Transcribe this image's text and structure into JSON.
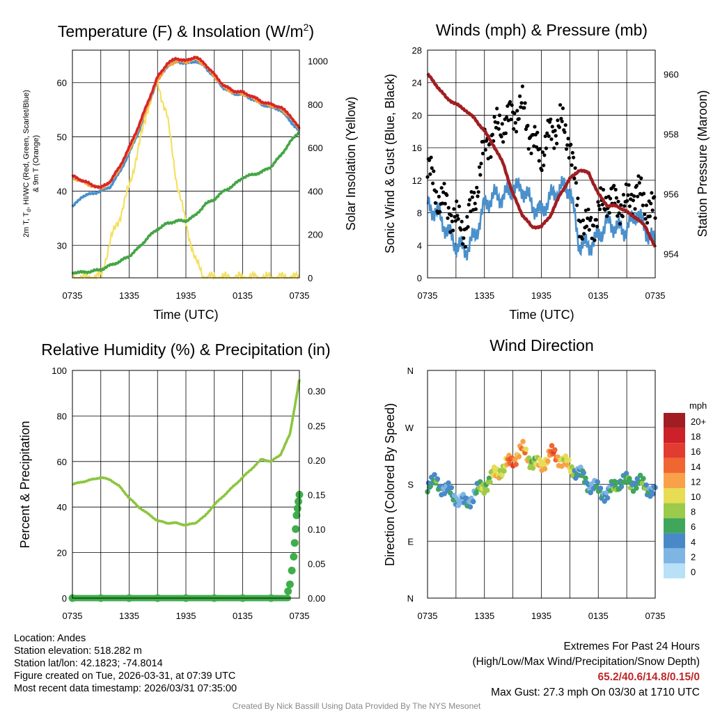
{
  "chart_data": [
    {
      "type": "line",
      "title": "Temperature (F) & Insolation (W/m²)",
      "title_main": "Temperature (F) & Insolation (W/m",
      "title_sup": "2",
      "title_end": ")",
      "xlabel": "Time (UTC)",
      "ylabel_line1": "2m T, T",
      "ylabel_sub": "d",
      "ylabel_line1_end": ", HI/WC (Red, Green, Scarlet/Blue)",
      "ylabel_line2": "& 9m T (Orange)",
      "y2label": "Solar Insolation (Yellow)",
      "x_ticks": [
        "0735",
        "1335",
        "1935",
        "0135",
        "0735"
      ],
      "ylim": [
        24,
        66
      ],
      "y_ticks": [
        "30",
        "40",
        "50",
        "60"
      ],
      "y2lim": [
        0,
        1050
      ],
      "y2_ticks": [
        "0",
        "200",
        "400",
        "600",
        "800",
        "1000"
      ],
      "x_hours": [
        0,
        1,
        2,
        3,
        4,
        5,
        6,
        7,
        8,
        9,
        10,
        11,
        12,
        13,
        14,
        15,
        16,
        17,
        18,
        19,
        20,
        21,
        22,
        23,
        24
      ],
      "series": [
        {
          "name": "2m T",
          "color": "#d62728",
          "values": [
            42.8,
            42.0,
            41.2,
            40.6,
            41.8,
            44.5,
            48.0,
            52.0,
            56.5,
            61.0,
            63.5,
            64.5,
            64.0,
            64.8,
            63.5,
            61.5,
            59.5,
            58.5,
            58.2,
            57.5,
            56.5,
            56.0,
            55.5,
            54.0,
            51.5
          ]
        },
        {
          "name": "Td",
          "color": "#44a645",
          "values": [
            25.0,
            25.0,
            25.2,
            25.5,
            26.3,
            27.0,
            28.0,
            29.5,
            31.5,
            33.0,
            34.0,
            34.5,
            34.5,
            35.5,
            37.5,
            38.5,
            40.0,
            41.0,
            42.5,
            43.0,
            43.5,
            44.5,
            46.5,
            49.0,
            51.0
          ]
        },
        {
          "name": "HI/WC",
          "color": "#4a90cc",
          "values": [
            37.0,
            39.0,
            39.5,
            40.0,
            40.8,
            43.5,
            47.0,
            51.0,
            56.0,
            60.5,
            63.0,
            64.0,
            63.5,
            64.0,
            63.0,
            61.0,
            59.0,
            58.0,
            57.8,
            57.0,
            56.0,
            55.5,
            55.0,
            53.0,
            51.0
          ]
        },
        {
          "name": "9m T",
          "color": "#f5a040",
          "values": [
            42.5,
            41.8,
            41.0,
            40.5,
            41.6,
            44.2,
            47.5,
            51.5,
            56.0,
            60.5,
            63.0,
            64.0,
            63.8,
            64.5,
            63.2,
            61.2,
            59.2,
            58.2,
            58.0,
            57.2,
            56.2,
            55.8,
            55.2,
            53.8,
            51.5
          ]
        }
      ],
      "insolation": {
        "name": "Solar Insolation",
        "color": "#f5e060",
        "values": [
          0,
          0,
          0,
          5,
          170,
          280,
          420,
          600,
          790,
          900,
          750,
          450,
          250,
          80,
          0,
          0,
          0,
          0,
          0,
          0,
          0,
          0,
          0,
          0,
          0
        ]
      }
    },
    {
      "type": "line",
      "title": "Winds (mph) & Pressure (mb)",
      "xlabel": "Time (UTC)",
      "ylabel": "Sonic Wind & Gust (Blue, Black)",
      "y2label": "Station Pressure (Maroon)",
      "x_ticks": [
        "0735",
        "1335",
        "1935",
        "0135",
        "0735"
      ],
      "ylim": [
        0,
        28
      ],
      "y_ticks": [
        "0",
        "4",
        "8",
        "12",
        "16",
        "20",
        "24",
        "28"
      ],
      "y2lim": [
        953.2,
        960.8
      ],
      "y2_ticks": [
        "954",
        "956",
        "958",
        "960"
      ],
      "x_hours": [
        0,
        1,
        2,
        3,
        4,
        5,
        6,
        7,
        8,
        9,
        10,
        11,
        12,
        13,
        14,
        15,
        16,
        17,
        18,
        19,
        20,
        21,
        22,
        23,
        24
      ],
      "wind": {
        "name": "Sonic Wind",
        "color": "#4a90cc",
        "values": [
          9,
          8,
          6,
          4,
          3.5,
          5,
          9,
          10,
          10,
          11,
          11,
          9,
          8,
          10,
          11,
          11,
          4,
          4,
          5,
          7,
          6,
          6,
          8,
          6,
          4
        ]
      },
      "gust": {
        "name": "Gust",
        "color": "#000000",
        "values": [
          14,
          10,
          9,
          7,
          6,
          10,
          16,
          18,
          19,
          20,
          21,
          17,
          15,
          18,
          19,
          17,
          7,
          6,
          8,
          10,
          9,
          9,
          11,
          9,
          8
        ]
      },
      "pressure": {
        "name": "Station Pressure",
        "color": "#a01e22",
        "values": [
          960.0,
          959.6,
          959.2,
          959.0,
          958.8,
          958.5,
          958.1,
          957.6,
          957.0,
          956.0,
          955.3,
          954.9,
          954.9,
          955.3,
          956.0,
          956.5,
          956.8,
          956.7,
          956.0,
          955.6,
          955.6,
          955.4,
          955.2,
          954.9,
          954.2
        ]
      }
    },
    {
      "type": "line",
      "title": "Relative Humidity (%) & Precipitation (in)",
      "xlabel": "",
      "ylabel": "Percent & Precipitation",
      "x_ticks": [
        "0735",
        "1335",
        "1935",
        "0135",
        "0735"
      ],
      "ylim": [
        0,
        100
      ],
      "y_ticks": [
        "0",
        "20",
        "40",
        "60",
        "80",
        "100"
      ],
      "y2lim": [
        0,
        0.33
      ],
      "y2_ticks": [
        "0.00",
        "0.05",
        "0.10",
        "0.15",
        "0.20",
        "0.25",
        "0.30"
      ],
      "x_hours": [
        0,
        1,
        2,
        3,
        4,
        5,
        6,
        7,
        8,
        9,
        10,
        11,
        12,
        13,
        14,
        15,
        16,
        17,
        18,
        19,
        20,
        21,
        22,
        23,
        24
      ],
      "rh": {
        "name": "Relative Humidity",
        "color": "#8cc63f",
        "values": [
          50,
          51,
          52,
          53,
          52,
          49,
          44,
          40,
          37,
          34,
          33,
          33,
          32,
          33,
          36,
          41,
          45,
          49,
          53,
          57,
          61,
          60,
          63,
          72,
          96
        ]
      },
      "precip": {
        "name": "Precipitation",
        "color": "#3fae49",
        "hours": [
          0,
          3,
          6,
          9,
          12,
          15,
          18,
          21,
          22.8,
          23.0,
          23.2,
          23.4,
          23.5,
          23.6,
          23.7,
          23.8,
          23.9,
          24.0
        ],
        "values": [
          0,
          0,
          0,
          0,
          0,
          0,
          0,
          0,
          0.01,
          0.02,
          0.04,
          0.06,
          0.08,
          0.1,
          0.12,
          0.13,
          0.14,
          0.15
        ]
      }
    },
    {
      "type": "scatter",
      "title": "Wind Direction",
      "ylabel": "Direction (Colored By Speed)",
      "x_ticks": [
        "0735",
        "1335",
        "1935",
        "0135",
        "0735"
      ],
      "y_ticks": [
        "N",
        "E",
        "S",
        "W",
        "N"
      ],
      "ylim": [
        0,
        360
      ],
      "x_hours": [
        0,
        1,
        2,
        3,
        4,
        5,
        6,
        7,
        8,
        9,
        10,
        11,
        12,
        13,
        14,
        15,
        16,
        17,
        18,
        19,
        20,
        21,
        22,
        23,
        24
      ],
      "direction_deg": [
        180,
        182,
        172,
        158,
        150,
        165,
        178,
        195,
        205,
        220,
        235,
        215,
        210,
        228,
        222,
        205,
        198,
        180,
        170,
        165,
        182,
        185,
        182,
        178,
        165
      ],
      "speed_mph": [
        6,
        5,
        4,
        3,
        3,
        4,
        8,
        9,
        10,
        14,
        12,
        8,
        10,
        14,
        12,
        9,
        4,
        4,
        4,
        4,
        6,
        5,
        6,
        5,
        4
      ],
      "legend_title": "mph",
      "legend_labels": [
        "20+",
        "18",
        "16",
        "14",
        "12",
        "10",
        "8",
        "6",
        "4",
        "2",
        "0"
      ],
      "legend_colors": [
        "#a21d22",
        "#cc2128",
        "#e23b30",
        "#ef6630",
        "#f8a148",
        "#e7dd55",
        "#9cca4b",
        "#3fa65a",
        "#4a89c8",
        "#7fb5e2",
        "#b8e0f6"
      ]
    }
  ],
  "footer": {
    "location": "Location: Andes",
    "elevation": "Station elevation: 518.282 m",
    "latlon": "Station lat/lon: 42.1823; -74.8014",
    "created": "Figure created on Tue, 2026-03-31, at 07:39 UTC",
    "recent": "Most recent data timestamp: 2026/03/31 07:35:00",
    "extremes_title": "Extremes For Past 24 Hours",
    "extremes_sub": "(High/Low/Max Wind/Precipitation/Snow Depth)",
    "extremes_values": "65.2/40.6/14.8/0.15/0",
    "max_gust": "Max Gust: 27.3 mph On 03/30 at 1710 UTC",
    "credit": "Created By Nick Bassill Using Data Provided By The NYS Mesonet"
  }
}
